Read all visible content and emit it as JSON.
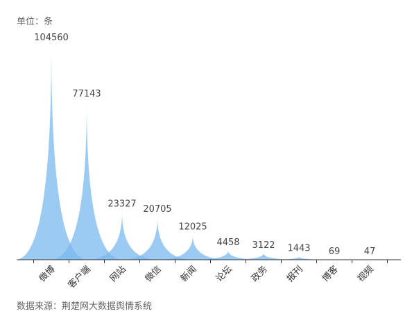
{
  "unit_label": "单位：条",
  "source_label": "数据来源：荆楚网大数据舆情系统",
  "colors": {
    "peak": "#7ab8ef",
    "axis": "#333333"
  },
  "chart_data": {
    "type": "bar",
    "categories": [
      "微博",
      "客户端",
      "网站",
      "微信",
      "新闻",
      "论坛",
      "政务",
      "报刊",
      "博客",
      "视频"
    ],
    "values": [
      104560,
      77143,
      23327,
      20705,
      12025,
      4458,
      3122,
      1443,
      69,
      47
    ],
    "ylim": [
      0,
      104560
    ],
    "grid": false,
    "legend": "none"
  }
}
